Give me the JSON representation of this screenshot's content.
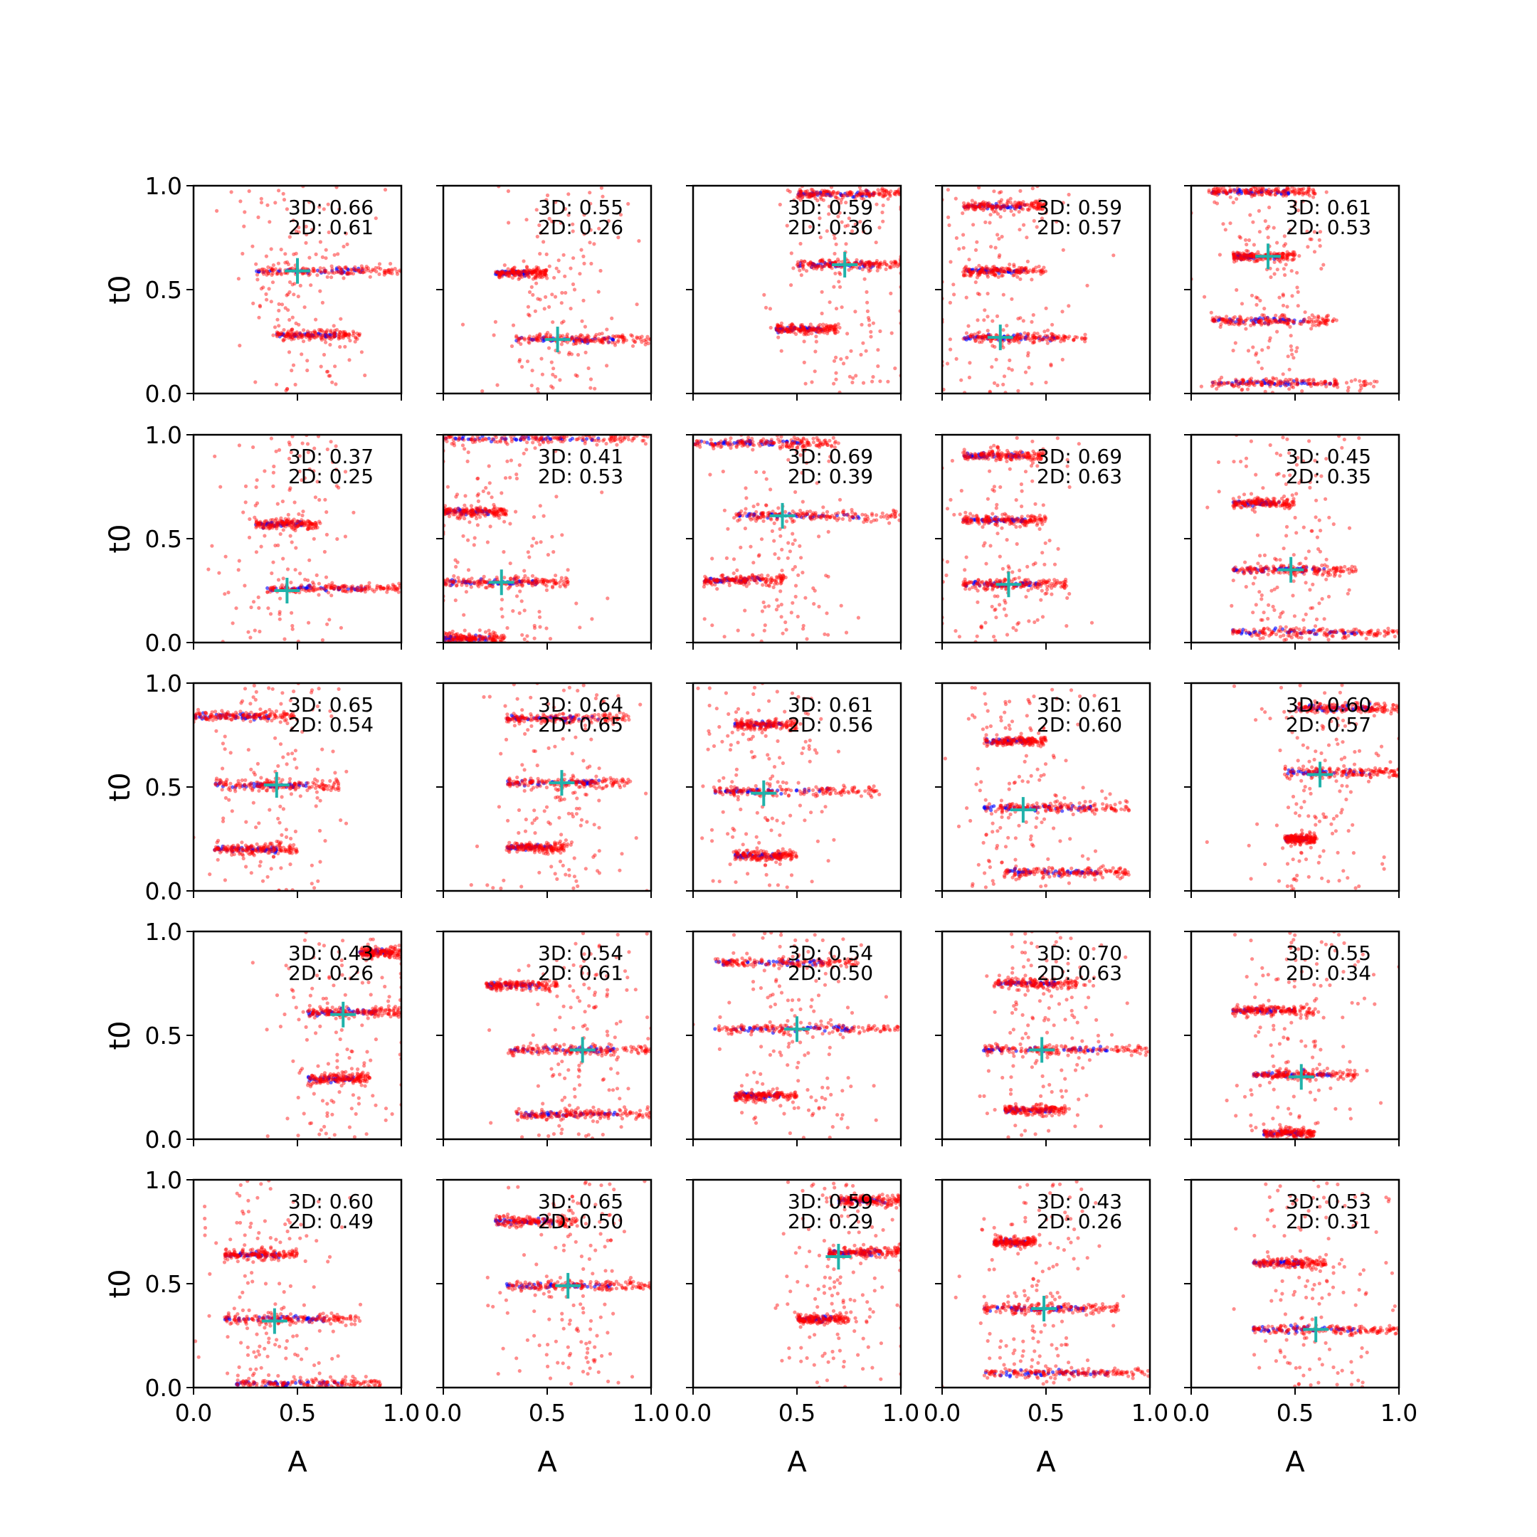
{
  "chart_data": {
    "type": "scatter",
    "grid_rows": 5,
    "grid_cols": 5,
    "xlabel": "A",
    "ylabel": "t0",
    "xlim": [
      0,
      1
    ],
    "ylim": [
      0,
      1
    ],
    "xticks": [
      "0.0",
      "0.5",
      "1.0"
    ],
    "yticks": [
      "0.0",
      "0.5",
      "1.0"
    ],
    "grid": false,
    "colors": {
      "dense": "#ff0000",
      "sparse": "#0000ff",
      "marker": "#20b2aa"
    },
    "panels": [
      {
        "annot": [
          "3D: 0.66",
          "2D: 0.61"
        ],
        "marker": [
          0.5,
          0.59
        ],
        "bands": [
          [
            0.59,
            0.3,
            1.0
          ],
          [
            0.28,
            0.4,
            0.8
          ]
        ]
      },
      {
        "annot": [
          "3D: 0.55",
          "2D: 0.26"
        ],
        "marker": [
          0.55,
          0.26
        ],
        "bands": [
          [
            0.58,
            0.25,
            0.5
          ],
          [
            0.26,
            0.35,
            1.0
          ]
        ]
      },
      {
        "annot": [
          "3D: 0.59",
          "2D: 0.36"
        ],
        "marker": [
          0.73,
          0.62
        ],
        "bands": [
          [
            0.62,
            0.5,
            1.0
          ],
          [
            0.31,
            0.4,
            0.7
          ],
          [
            0.96,
            0.5,
            1.0
          ]
        ]
      },
      {
        "annot": [
          "3D: 0.59",
          "2D: 0.57"
        ],
        "marker": [
          0.28,
          0.27
        ],
        "bands": [
          [
            0.9,
            0.1,
            0.5
          ],
          [
            0.59,
            0.1,
            0.5
          ],
          [
            0.27,
            0.1,
            0.7
          ]
        ]
      },
      {
        "annot": [
          "3D: 0.61",
          "2D: 0.53"
        ],
        "marker": [
          0.37,
          0.66
        ],
        "bands": [
          [
            0.97,
            0.1,
            0.6
          ],
          [
            0.66,
            0.2,
            0.5
          ],
          [
            0.35,
            0.1,
            0.7
          ],
          [
            0.05,
            0.1,
            0.9
          ]
        ]
      },
      {
        "annot": [
          "3D: 0.37",
          "2D: 0.25"
        ],
        "marker": [
          0.45,
          0.25
        ],
        "bands": [
          [
            0.57,
            0.3,
            0.6
          ],
          [
            0.26,
            0.35,
            1.0
          ]
        ]
      },
      {
        "annot": [
          "3D: 0.41",
          "2D: 0.53"
        ],
        "marker": [
          0.28,
          0.29
        ],
        "bands": [
          [
            0.98,
            0.0,
            1.0
          ],
          [
            0.63,
            0.0,
            0.3
          ],
          [
            0.29,
            0.0,
            0.6
          ],
          [
            0.02,
            0.0,
            0.3
          ]
        ]
      },
      {
        "annot": [
          "3D: 0.69",
          "2D: 0.39"
        ],
        "marker": [
          0.43,
          0.61
        ],
        "bands": [
          [
            0.96,
            0.0,
            0.7
          ],
          [
            0.61,
            0.2,
            1.0
          ],
          [
            0.3,
            0.05,
            0.45
          ]
        ]
      },
      {
        "annot": [
          "3D: 0.69",
          "2D: 0.63"
        ],
        "marker": [
          0.32,
          0.28
        ],
        "bands": [
          [
            0.9,
            0.1,
            0.5
          ],
          [
            0.59,
            0.1,
            0.5
          ],
          [
            0.28,
            0.1,
            0.6
          ]
        ]
      },
      {
        "annot": [
          "3D: 0.45",
          "2D: 0.35"
        ],
        "marker": [
          0.48,
          0.35
        ],
        "bands": [
          [
            0.67,
            0.2,
            0.5
          ],
          [
            0.35,
            0.2,
            0.8
          ],
          [
            0.05,
            0.2,
            1.0
          ]
        ]
      },
      {
        "annot": [
          "3D: 0.65",
          "2D: 0.54"
        ],
        "marker": [
          0.4,
          0.51
        ],
        "bands": [
          [
            0.84,
            0.0,
            0.5
          ],
          [
            0.51,
            0.1,
            0.7
          ],
          [
            0.2,
            0.1,
            0.5
          ]
        ]
      },
      {
        "annot": [
          "3D: 0.64",
          "2D: 0.65"
        ],
        "marker": [
          0.57,
          0.52
        ],
        "bands": [
          [
            0.83,
            0.3,
            0.9
          ],
          [
            0.52,
            0.3,
            0.9
          ],
          [
            0.21,
            0.3,
            0.6
          ]
        ]
      },
      {
        "annot": [
          "3D: 0.61",
          "2D: 0.56"
        ],
        "marker": [
          0.34,
          0.47
        ],
        "bands": [
          [
            0.8,
            0.2,
            0.5
          ],
          [
            0.48,
            0.1,
            0.9
          ],
          [
            0.17,
            0.2,
            0.5
          ]
        ]
      },
      {
        "annot": [
          "3D: 0.61",
          "2D: 0.60"
        ],
        "marker": [
          0.39,
          0.39
        ],
        "bands": [
          [
            0.72,
            0.2,
            0.5
          ],
          [
            0.4,
            0.2,
            0.9
          ],
          [
            0.09,
            0.3,
            0.9
          ]
        ]
      },
      {
        "annot": [
          "3D: 0.60",
          "2D: 0.57"
        ],
        "marker": [
          0.62,
          0.56
        ],
        "bands": [
          [
            0.88,
            0.5,
            1.0
          ],
          [
            0.57,
            0.45,
            1.0
          ],
          [
            0.25,
            0.45,
            0.6
          ]
        ]
      },
      {
        "annot": [
          "3D: 0.43",
          "2D: 0.26"
        ],
        "marker": [
          0.72,
          0.6
        ],
        "bands": [
          [
            0.9,
            0.8,
            1.0
          ],
          [
            0.61,
            0.55,
            1.0
          ],
          [
            0.29,
            0.55,
            0.85
          ]
        ]
      },
      {
        "annot": [
          "3D: 0.54",
          "2D: 0.61"
        ],
        "marker": [
          0.67,
          0.43
        ],
        "bands": [
          [
            0.74,
            0.2,
            0.55
          ],
          [
            0.43,
            0.3,
            1.0
          ],
          [
            0.12,
            0.35,
            1.0
          ]
        ]
      },
      {
        "annot": [
          "3D: 0.54",
          "2D: 0.50"
        ],
        "marker": [
          0.5,
          0.53
        ],
        "bands": [
          [
            0.85,
            0.1,
            0.8
          ],
          [
            0.53,
            0.1,
            1.0
          ],
          [
            0.21,
            0.2,
            0.5
          ]
        ]
      },
      {
        "annot": [
          "3D: 0.70",
          "2D: 0.63"
        ],
        "marker": [
          0.48,
          0.43
        ],
        "bands": [
          [
            0.75,
            0.25,
            0.65
          ],
          [
            0.43,
            0.2,
            1.0
          ],
          [
            0.14,
            0.3,
            0.6
          ]
        ]
      },
      {
        "annot": [
          "3D: 0.55",
          "2D: 0.34"
        ],
        "marker": [
          0.53,
          0.3
        ],
        "bands": [
          [
            0.62,
            0.2,
            0.6
          ],
          [
            0.31,
            0.3,
            0.8
          ],
          [
            0.03,
            0.35,
            0.6
          ]
        ]
      },
      {
        "annot": [
          "3D: 0.60",
          "2D: 0.49"
        ],
        "marker": [
          0.39,
          0.32
        ],
        "bands": [
          [
            0.64,
            0.15,
            0.5
          ],
          [
            0.33,
            0.15,
            0.8
          ],
          [
            0.02,
            0.2,
            0.9
          ]
        ]
      },
      {
        "annot": [
          "3D: 0.65",
          "2D: 0.50"
        ],
        "marker": [
          0.6,
          0.49
        ],
        "bands": [
          [
            0.8,
            0.25,
            0.65
          ],
          [
            0.49,
            0.3,
            1.0
          ]
        ]
      },
      {
        "annot": [
          "3D: 0.59",
          "2D: 0.29"
        ],
        "marker": [
          0.7,
          0.63
        ],
        "bands": [
          [
            0.9,
            0.7,
            1.0
          ],
          [
            0.65,
            0.65,
            1.0
          ],
          [
            0.33,
            0.5,
            0.75
          ]
        ]
      },
      {
        "annot": [
          "3D: 0.43",
          "2D: 0.26"
        ],
        "marker": [
          0.49,
          0.38
        ],
        "bands": [
          [
            0.7,
            0.25,
            0.45
          ],
          [
            0.38,
            0.2,
            0.85
          ],
          [
            0.07,
            0.2,
            1.0
          ]
        ]
      },
      {
        "annot": [
          "3D: 0.53",
          "2D: 0.31"
        ],
        "marker": [
          0.6,
          0.28
        ],
        "bands": [
          [
            0.6,
            0.3,
            0.65
          ],
          [
            0.28,
            0.3,
            1.0
          ]
        ]
      }
    ]
  }
}
